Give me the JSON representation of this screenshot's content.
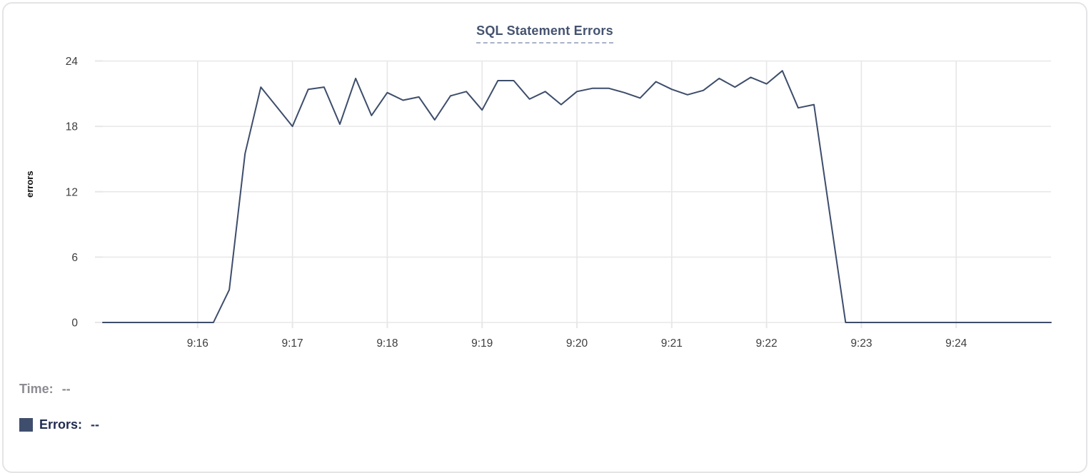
{
  "chart": {
    "title": "SQL Statement Errors"
  },
  "tooltip": {
    "time_label": "Time:",
    "time_value": "--",
    "series_label": "Errors:",
    "series_value": "--"
  },
  "colors": {
    "line": "#3d4d6b",
    "swatch": "#3f4e6d",
    "grid": "#e7e7e7",
    "tick_text": "#3d3d3d",
    "title_text": "#44536f",
    "title_underline": "#a9b2c6",
    "time_text": "#8c8c92",
    "errors_text": "#1f2b50"
  },
  "chart_data": {
    "type": "line",
    "title": "SQL Statement Errors",
    "xlabel": "",
    "ylabel": "errors",
    "ylim": [
      0,
      24
    ],
    "y_ticks": [
      0,
      6,
      12,
      18,
      24
    ],
    "x_ticks": [
      "9:16",
      "9:17",
      "9:18",
      "9:19",
      "9:20",
      "9:21",
      "9:22",
      "9:23",
      "9:24"
    ],
    "x_range": [
      "9:15:00",
      "9:25:00"
    ],
    "grid": true,
    "legend_position": "bottom-left",
    "series": [
      {
        "name": "Errors",
        "x": [
          "9:15:00",
          "9:15:10",
          "9:15:20",
          "9:15:30",
          "9:15:40",
          "9:15:50",
          "9:16:00",
          "9:16:10",
          "9:16:20",
          "9:16:30",
          "9:16:40",
          "9:16:50",
          "9:17:00",
          "9:17:10",
          "9:17:20",
          "9:17:30",
          "9:17:40",
          "9:17:50",
          "9:18:00",
          "9:18:10",
          "9:18:20",
          "9:18:30",
          "9:18:40",
          "9:18:50",
          "9:19:00",
          "9:19:10",
          "9:19:20",
          "9:19:30",
          "9:19:40",
          "9:19:50",
          "9:20:00",
          "9:20:10",
          "9:20:20",
          "9:20:30",
          "9:20:40",
          "9:20:50",
          "9:21:00",
          "9:21:10",
          "9:21:20",
          "9:21:30",
          "9:21:40",
          "9:21:50",
          "9:22:00",
          "9:22:10",
          "9:22:20",
          "9:22:30",
          "9:22:40",
          "9:22:50",
          "9:23:00",
          "9:23:10",
          "9:23:20",
          "9:23:30",
          "9:23:40",
          "9:23:50",
          "9:24:00",
          "9:24:10",
          "9:24:20",
          "9:24:30",
          "9:24:40",
          "9:24:50",
          "9:25:00"
        ],
        "values": [
          0,
          0,
          0,
          0,
          0,
          0,
          0,
          0,
          3,
          15.5,
          21.6,
          19.8,
          18,
          21.4,
          21.6,
          18.2,
          22.4,
          19,
          21.1,
          20.4,
          20.7,
          18.6,
          20.8,
          21.2,
          19.5,
          22.2,
          22.2,
          20.5,
          21.2,
          20,
          21.2,
          21.5,
          21.5,
          21.1,
          20.6,
          22.1,
          21.4,
          20.9,
          21.3,
          22.4,
          21.6,
          22.5,
          21.9,
          23.1,
          19.7,
          20,
          10,
          0,
          0,
          0,
          0,
          0,
          0,
          0,
          0,
          0,
          0,
          0,
          0,
          0,
          0
        ]
      }
    ]
  }
}
